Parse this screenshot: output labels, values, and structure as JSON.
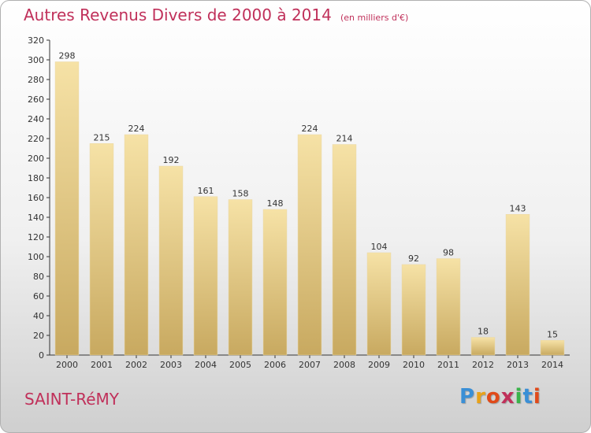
{
  "title": "Autres Revenus Divers de 2000 à 2014",
  "subtitle": "(en milliers d'€)",
  "location": "SAINT-RéMY",
  "logo": {
    "text": "Proxiti",
    "colors": [
      "#3a8fd6",
      "#e8a21a",
      "#e04a1a",
      "#c0305a",
      "#3ab34a",
      "#3a8fd6",
      "#e04a1a"
    ]
  },
  "colors": {
    "title": "#c0305a",
    "bar_top": "#f6e2a6",
    "bar_bottom": "#c8a960",
    "axis": "#333333"
  },
  "chart_data": {
    "type": "bar",
    "categories": [
      "2000",
      "2001",
      "2002",
      "2003",
      "2004",
      "2005",
      "2006",
      "2007",
      "2008",
      "2009",
      "2010",
      "2011",
      "2012",
      "2013",
      "2014"
    ],
    "values": [
      298,
      215,
      224,
      192,
      161,
      158,
      148,
      224,
      214,
      104,
      92,
      98,
      18,
      143,
      15
    ],
    "ylim": [
      0,
      320
    ],
    "yticks": [
      0,
      20,
      40,
      60,
      80,
      100,
      120,
      140,
      160,
      180,
      200,
      220,
      240,
      260,
      280,
      300,
      320
    ],
    "grid": false,
    "data_labels": true
  }
}
